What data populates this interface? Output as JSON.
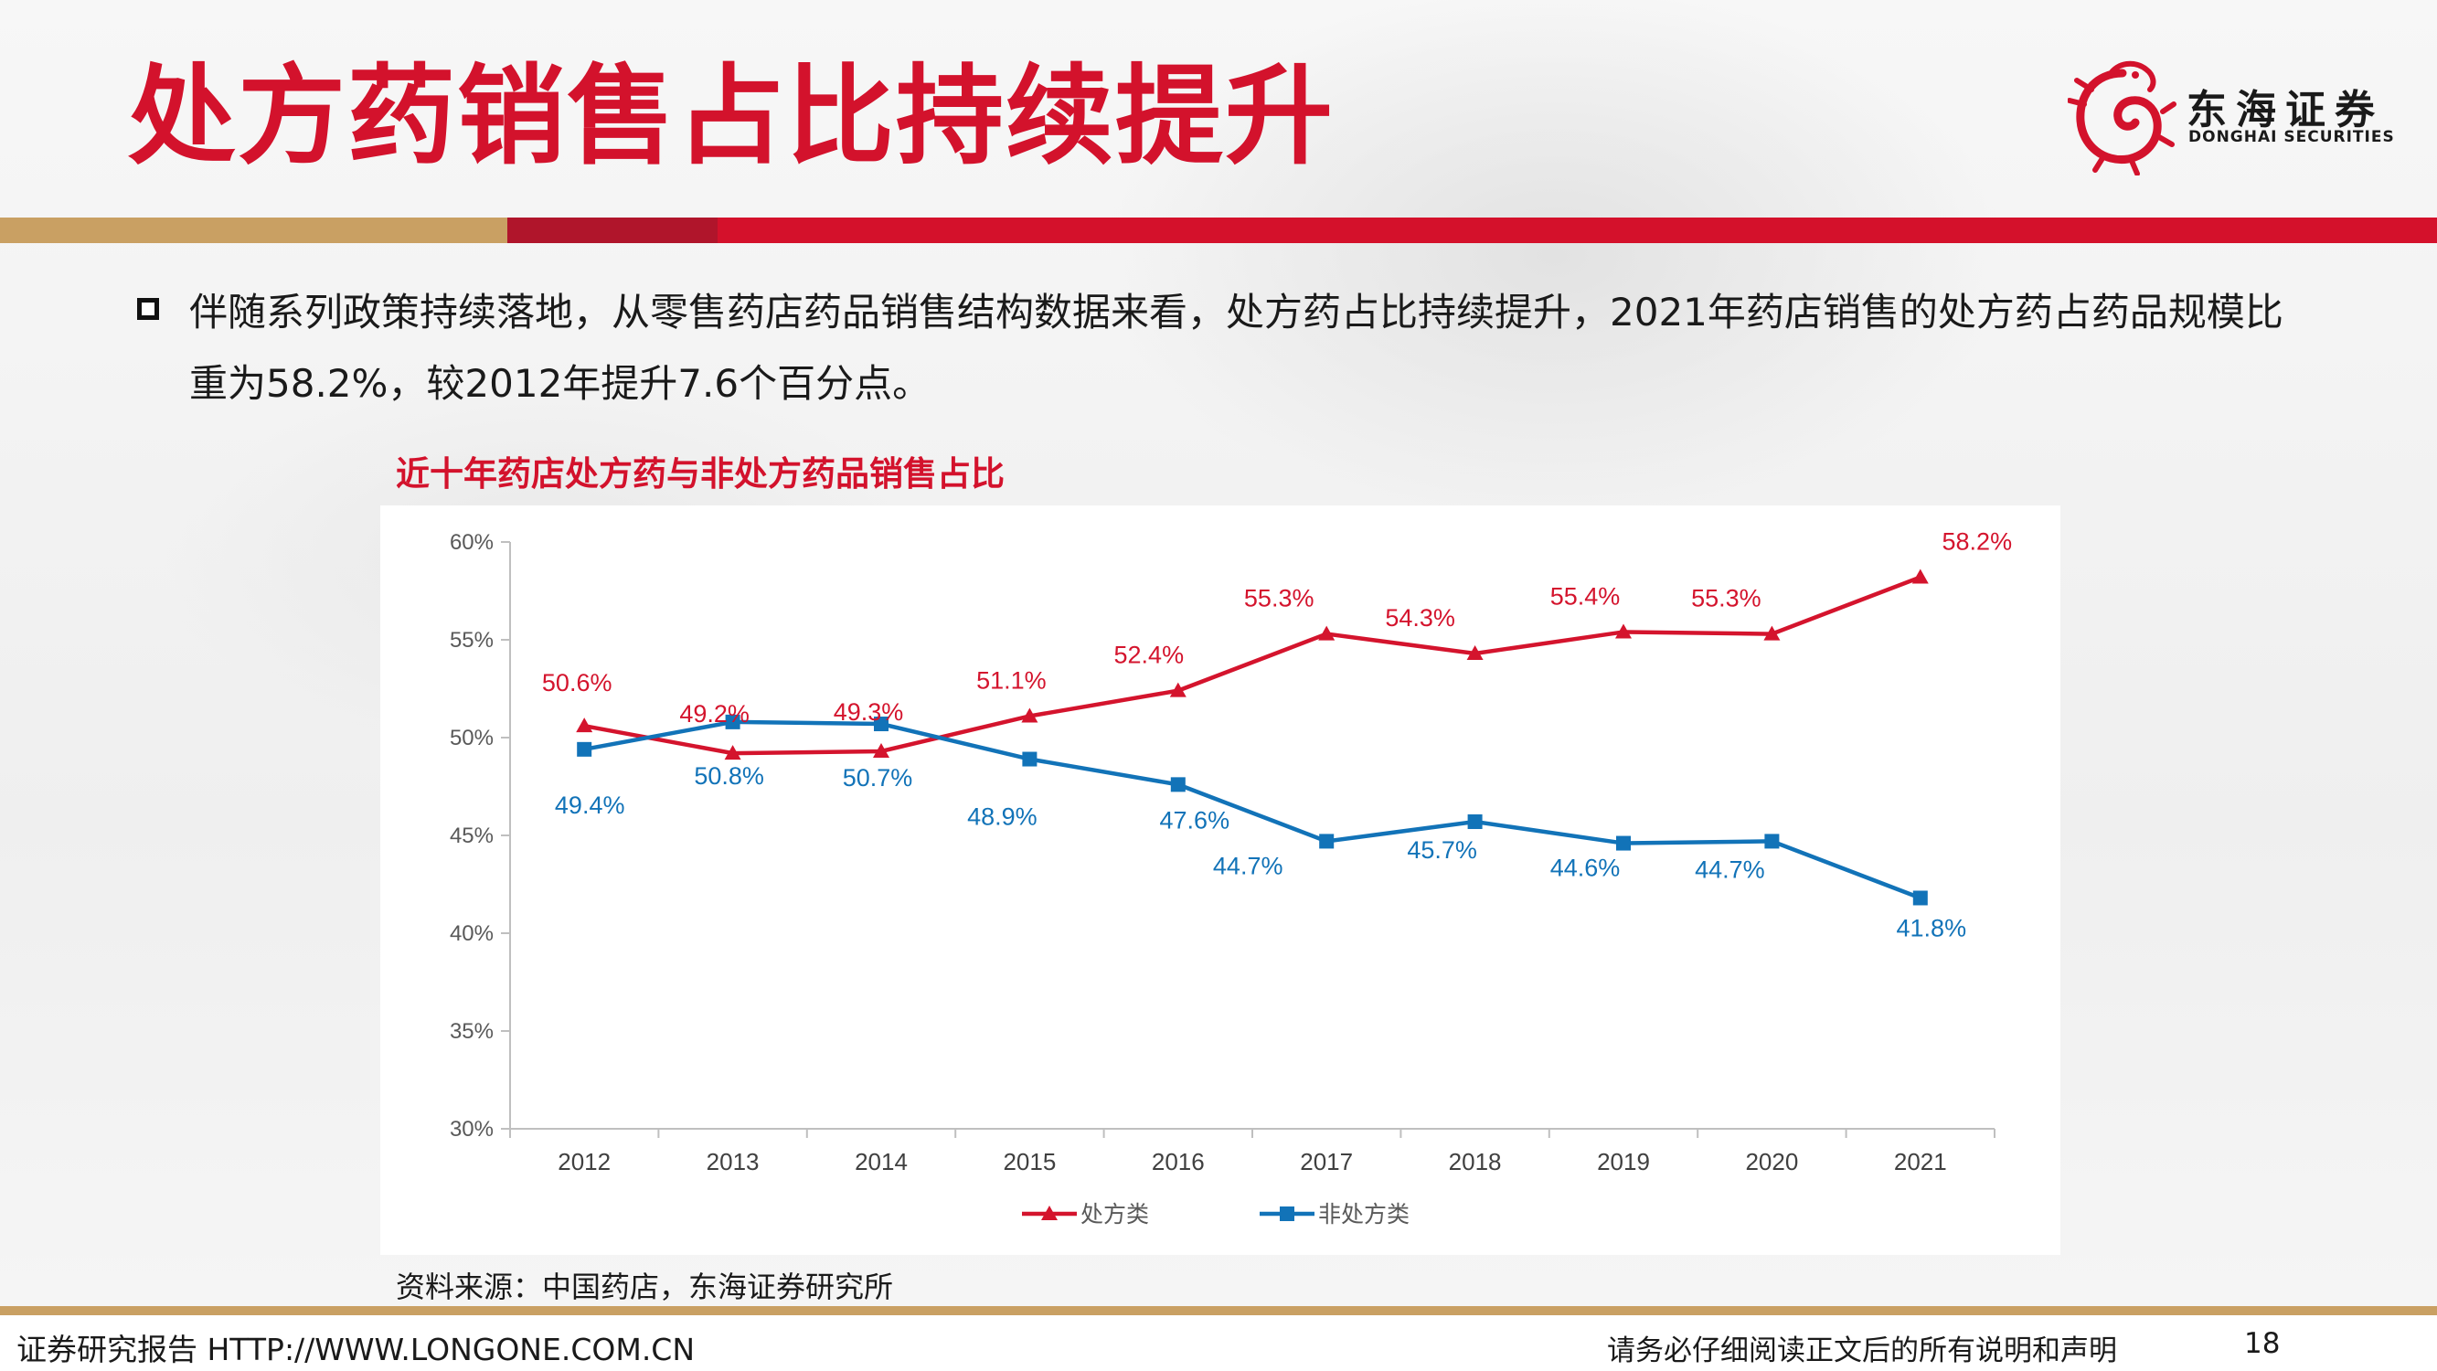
{
  "slide": {
    "title": "处方药销售占比持续提升",
    "bullet": "伴随系列政策持续落地，从零售药店药品销售结构数据来看，处方药占比持续提升，2021年药店销售的处方药占药品规模比重为58.2%，较2012年提升7.6个百分点。",
    "source": "资料来源：中国药店，东海证券研究所"
  },
  "logo": {
    "name_cn": "东海证券",
    "name_en": "DONGHAI SECURITIES"
  },
  "footer": {
    "left": "证券研究报告 HTTP://WWW.LONGONE.COM.CN",
    "right": "请务必仔细阅读正文后的所有说明和声明",
    "page": "18"
  },
  "colors": {
    "brand_red": "#d3122c",
    "gold": "#c9a063",
    "series_rx": "#d4142d",
    "series_otc": "#1273b8"
  },
  "chart_data": {
    "type": "line",
    "title": "近十年药店处方药与非处方药品销售占比",
    "xlabel": "",
    "ylabel": "",
    "categories": [
      "2012",
      "2013",
      "2014",
      "2015",
      "2016",
      "2017",
      "2018",
      "2019",
      "2020",
      "2021"
    ],
    "ylim": [
      30,
      60
    ],
    "yticks": [
      30,
      35,
      40,
      45,
      50,
      55,
      60
    ],
    "ytick_labels": [
      "30%",
      "35%",
      "40%",
      "45%",
      "50%",
      "55%",
      "60%"
    ],
    "grid": false,
    "legend_position": "bottom",
    "series": [
      {
        "name": "处方类",
        "color": "#d4142d",
        "marker": "triangle",
        "values": [
          50.6,
          49.2,
          49.3,
          51.1,
          52.4,
          55.3,
          54.3,
          55.4,
          55.3,
          58.2
        ],
        "labels": [
          "50.6%",
          "49.2%",
          "49.3%",
          "51.1%",
          "52.4%",
          "55.3%",
          "54.3%",
          "55.4%",
          "55.3%",
          "58.2%"
        ]
      },
      {
        "name": "非处方类",
        "color": "#1273b8",
        "marker": "square",
        "values": [
          49.4,
          50.8,
          50.7,
          48.9,
          47.6,
          44.7,
          45.7,
          44.6,
          44.7,
          41.8
        ],
        "labels": [
          "49.4%",
          "50.8%",
          "50.7%",
          "48.9%",
          "47.6%",
          "44.7%",
          "45.7%",
          "44.6%",
          "44.7%",
          "41.8%"
        ]
      }
    ]
  }
}
